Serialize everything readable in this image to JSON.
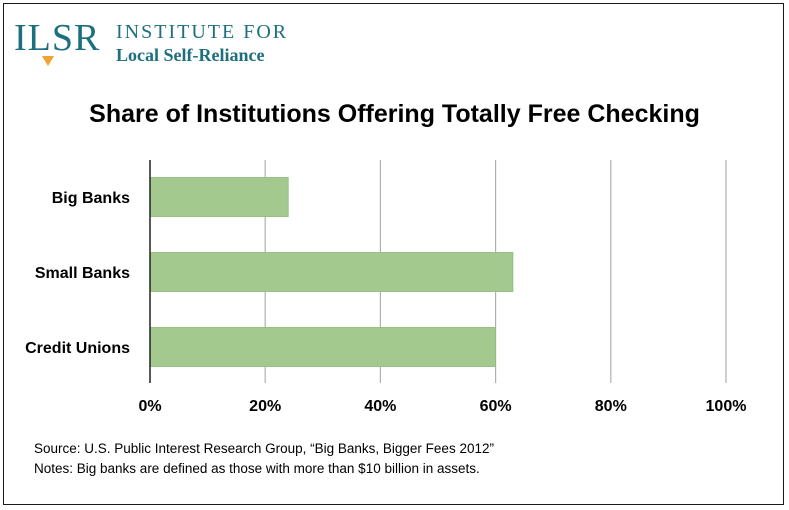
{
  "logo": {
    "mark": "ILSR",
    "line1": "INSTITUTE FOR",
    "line2": "Local Self-Reliance"
  },
  "colors": {
    "bar": "#a4c98e",
    "bar_stroke": "#8fb879",
    "grid": "#b0b0b0",
    "axis": "#222222",
    "brand": "#1d6f80",
    "brand_accent": "#f0a232"
  },
  "chart_data": {
    "type": "bar",
    "orientation": "horizontal",
    "title": "Share of Institutions Offering Totally Free Checking",
    "categories": [
      "Big Banks",
      "Small Banks",
      "Credit Unions"
    ],
    "values": [
      24,
      63,
      60
    ],
    "xlim": [
      0,
      100
    ],
    "xticks": [
      0,
      20,
      40,
      60,
      80,
      100
    ],
    "xtick_labels": [
      "0%",
      "20%",
      "40%",
      "60%",
      "80%",
      "100%"
    ],
    "grid": true,
    "legend": "none"
  },
  "notes": {
    "source": "Source: U.S. Public Interest Research Group, “Big Banks, Bigger Fees 2012”",
    "notes": "Notes: Big banks are defined as those with more than $10 billion in assets."
  }
}
